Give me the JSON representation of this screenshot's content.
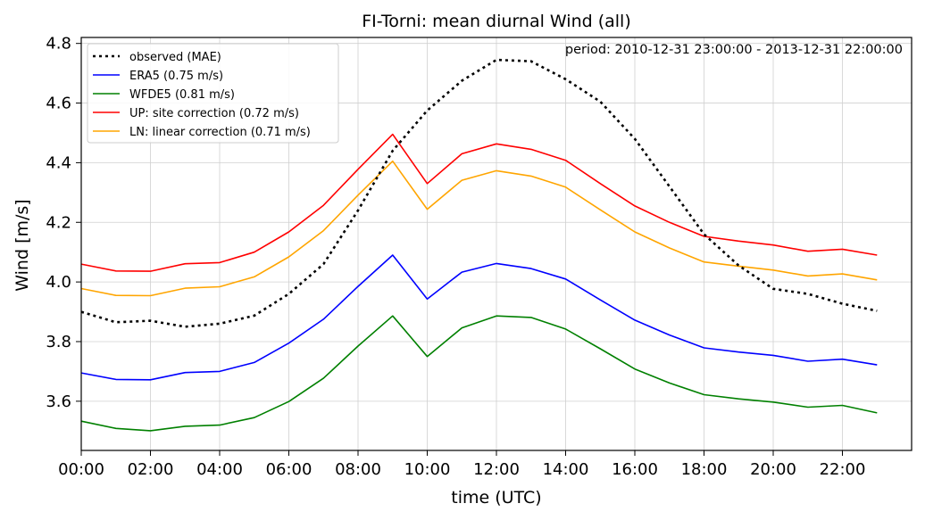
{
  "chart_data": {
    "type": "line",
    "title": "FI-Torni: mean diurnal Wind (all)",
    "annotation": "period: 2010-12-31 23:00:00 - 2013-12-31 22:00:00",
    "xlabel": "time (UTC)",
    "ylabel": "Wind [m/s]",
    "x": [
      0,
      1,
      2,
      3,
      4,
      5,
      6,
      7,
      8,
      9,
      10,
      11,
      12,
      13,
      14,
      15,
      16,
      17,
      18,
      19,
      20,
      21,
      22,
      23
    ],
    "x_ticks": [
      "00:00",
      "02:00",
      "04:00",
      "06:00",
      "08:00",
      "10:00",
      "12:00",
      "14:00",
      "16:00",
      "18:00",
      "20:00",
      "22:00"
    ],
    "x_tick_hours": [
      0,
      2,
      4,
      6,
      8,
      10,
      12,
      14,
      16,
      18,
      20,
      22
    ],
    "xlim": [
      0,
      24
    ],
    "ylim": [
      3.435,
      4.82
    ],
    "y_ticks": [
      "3.6",
      "3.8",
      "4.0",
      "4.2",
      "4.4",
      "4.6",
      "4.8"
    ],
    "y_tick_values": [
      3.6,
      3.8,
      4.0,
      4.2,
      4.4,
      4.6,
      4.8
    ],
    "grid": true,
    "legend_position": "top-left",
    "series": [
      {
        "name": "observed (MAE)",
        "color": "#000000",
        "style": "dotted",
        "values": [
          3.9,
          3.865,
          3.87,
          3.85,
          3.86,
          3.887,
          3.96,
          4.06,
          4.24,
          4.44,
          4.575,
          4.675,
          4.745,
          4.74,
          4.68,
          4.605,
          4.48,
          4.32,
          4.16,
          4.055,
          3.977,
          3.96,
          3.927,
          3.903
        ]
      },
      {
        "name": "ERA5 (0.75 m/s)",
        "color": "#0000ff",
        "style": "solid",
        "values": [
          3.695,
          3.673,
          3.672,
          3.696,
          3.7,
          3.73,
          3.795,
          3.875,
          3.985,
          4.09,
          3.943,
          4.033,
          4.062,
          4.045,
          4.01,
          3.94,
          3.872,
          3.822,
          3.779,
          3.765,
          3.754,
          3.734,
          3.741,
          3.722
        ]
      },
      {
        "name": "WFDE5 (0.81 m/s)",
        "color": "#008000",
        "style": "solid",
        "values": [
          3.533,
          3.509,
          3.501,
          3.516,
          3.52,
          3.545,
          3.599,
          3.677,
          3.785,
          3.886,
          3.75,
          3.846,
          3.886,
          3.881,
          3.842,
          3.776,
          3.708,
          3.661,
          3.622,
          3.608,
          3.597,
          3.58,
          3.586,
          3.561
        ]
      },
      {
        "name": "UP: site correction (0.72 m/s)",
        "color": "#ff0000",
        "style": "solid",
        "values": [
          4.06,
          4.037,
          4.036,
          4.061,
          4.065,
          4.1,
          4.168,
          4.257,
          4.378,
          4.495,
          4.33,
          4.43,
          4.463,
          4.445,
          4.408,
          4.33,
          4.255,
          4.2,
          4.153,
          4.137,
          4.124,
          4.103,
          4.11,
          4.09
        ]
      },
      {
        "name": "LN: linear correction (0.71 m/s)",
        "color": "#ffa500",
        "style": "solid",
        "values": [
          3.978,
          3.955,
          3.954,
          3.979,
          3.984,
          4.017,
          4.084,
          4.172,
          4.291,
          4.405,
          4.244,
          4.341,
          4.373,
          4.355,
          4.318,
          4.242,
          4.168,
          4.114,
          4.067,
          4.053,
          4.04,
          4.02,
          4.027,
          4.007
        ]
      }
    ]
  }
}
